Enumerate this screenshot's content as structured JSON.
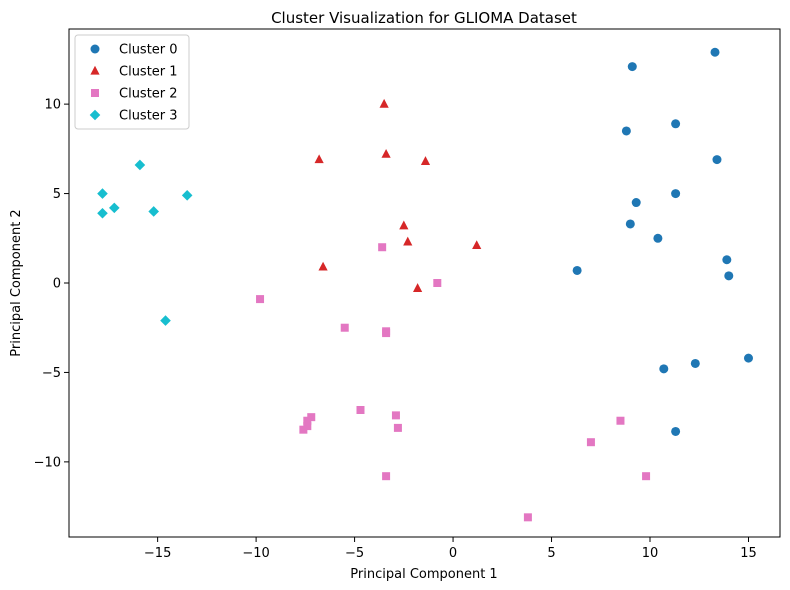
{
  "chart_data": {
    "type": "scatter",
    "title": "Cluster Visualization for GLIOMA Dataset",
    "xlabel": "Principal Component 1",
    "ylabel": "Principal Component 2",
    "xlim": [
      -19.5,
      16.6
    ],
    "ylim": [
      -14.2,
      14.2
    ],
    "xticks": [
      -15,
      -10,
      -5,
      0,
      5,
      10,
      15
    ],
    "yticks": [
      -10,
      -5,
      0,
      5,
      10
    ],
    "legend_position": "upper-left",
    "grid": false,
    "series": [
      {
        "name": "Cluster 0",
        "marker": "circle",
        "color": "#1f77b4",
        "points": [
          [
            13.3,
            12.9
          ],
          [
            9.1,
            12.1
          ],
          [
            11.3,
            8.9
          ],
          [
            8.8,
            8.5
          ],
          [
            13.4,
            6.9
          ],
          [
            11.3,
            5.0
          ],
          [
            9.3,
            4.5
          ],
          [
            9.0,
            3.3
          ],
          [
            10.4,
            2.5
          ],
          [
            13.9,
            1.3
          ],
          [
            14.0,
            0.4
          ],
          [
            6.3,
            0.7
          ],
          [
            15.0,
            -4.2
          ],
          [
            12.3,
            -4.5
          ],
          [
            10.7,
            -4.8
          ],
          [
            11.3,
            -8.3
          ]
        ]
      },
      {
        "name": "Cluster 1",
        "marker": "triangle",
        "color": "#d62728",
        "points": [
          [
            -3.5,
            10.0
          ],
          [
            -6.8,
            6.9
          ],
          [
            -3.4,
            7.2
          ],
          [
            -1.4,
            6.8
          ],
          [
            -2.5,
            3.2
          ],
          [
            -2.3,
            2.3
          ],
          [
            1.2,
            2.1
          ],
          [
            -6.6,
            0.9
          ],
          [
            -1.8,
            -0.3
          ]
        ]
      },
      {
        "name": "Cluster 2",
        "marker": "square",
        "color": "#e377c2",
        "points": [
          [
            -3.6,
            2.0
          ],
          [
            -0.8,
            0.0
          ],
          [
            -9.8,
            -0.9
          ],
          [
            -5.5,
            -2.5
          ],
          [
            -3.4,
            -2.7
          ],
          [
            -3.4,
            -2.8
          ],
          [
            -4.7,
            -7.1
          ],
          [
            -2.9,
            -7.4
          ],
          [
            -7.2,
            -7.5
          ],
          [
            -7.4,
            -7.7
          ],
          [
            -7.4,
            -8.0
          ],
          [
            -7.6,
            -8.2
          ],
          [
            -2.8,
            -8.1
          ],
          [
            8.5,
            -7.7
          ],
          [
            7.0,
            -8.9
          ],
          [
            -3.4,
            -10.8
          ],
          [
            9.8,
            -10.8
          ],
          [
            3.8,
            -13.1
          ]
        ]
      },
      {
        "name": "Cluster 3",
        "marker": "diamond",
        "color": "#17becf",
        "points": [
          [
            -15.9,
            6.6
          ],
          [
            -17.8,
            5.0
          ],
          [
            -13.5,
            4.9
          ],
          [
            -17.2,
            4.2
          ],
          [
            -15.2,
            4.0
          ],
          [
            -17.8,
            3.9
          ],
          [
            -14.6,
            -2.1
          ]
        ]
      }
    ]
  }
}
